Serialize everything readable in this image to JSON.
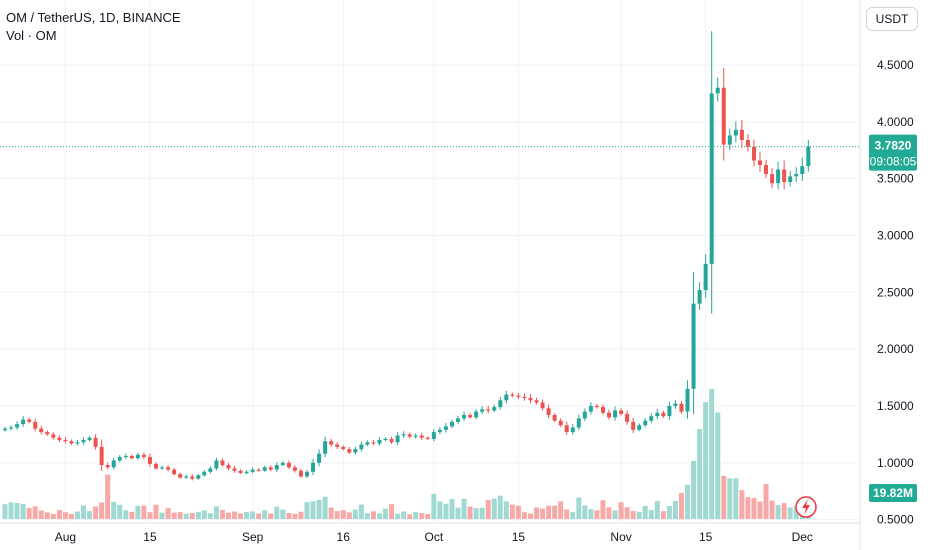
{
  "header": {
    "symbol_line": "OM / TetherUS, 1D, BINANCE",
    "volume_line": "Vol · OM",
    "currency_button": "USDT"
  },
  "price_badge": {
    "price": "3.7820",
    "countdown": "09:08:05"
  },
  "volume_badge": "19.82M",
  "colors": {
    "up": "#26a69a",
    "down": "#ef5350",
    "up_volume": "#9fd9d2",
    "down_volume": "#f7a9a7",
    "grid": "#f0f3fa",
    "text": "#131722",
    "badge": "#22ab94"
  },
  "chart_data": {
    "type": "candlestick",
    "title": "OM / TetherUS, 1D, BINANCE",
    "ylim": [
      0.47,
      4.72
    ],
    "y_ticks": [
      "0.5000",
      "1.0000",
      "1.5000",
      "2.0000",
      "2.5000",
      "3.0000",
      "3.5000",
      "4.0000",
      "4.5000"
    ],
    "x_tick_labels": [
      {
        "label": "Aug",
        "day": 10
      },
      {
        "label": "15",
        "day": 24
      },
      {
        "label": "Sep",
        "day": 41
      },
      {
        "label": "16",
        "day": 56
      },
      {
        "label": "Oct",
        "day": 71
      },
      {
        "label": "15",
        "day": 85
      },
      {
        "label": "Nov",
        "day": 102
      },
      {
        "label": "15",
        "day": 116
      },
      {
        "label": "Dec",
        "day": 132
      }
    ],
    "close": [
      1.3,
      1.31,
      1.34,
      1.38,
      1.36,
      1.3,
      1.27,
      1.25,
      1.22,
      1.2,
      1.19,
      1.17,
      1.18,
      1.2,
      1.22,
      1.14,
      0.98,
      0.96,
      1.02,
      1.05,
      1.06,
      1.04,
      1.07,
      1.05,
      0.99,
      0.95,
      0.96,
      0.94,
      0.9,
      0.87,
      0.88,
      0.86,
      0.89,
      0.92,
      0.95,
      1.02,
      0.98,
      0.95,
      0.93,
      0.91,
      0.92,
      0.94,
      0.93,
      0.96,
      0.94,
      0.98,
      1.0,
      0.96,
      0.93,
      0.88,
      0.92,
      1.0,
      1.08,
      1.19,
      1.16,
      1.14,
      1.12,
      1.09,
      1.12,
      1.16,
      1.18,
      1.17,
      1.2,
      1.21,
      1.18,
      1.24,
      1.25,
      1.23,
      1.24,
      1.22,
      1.21,
      1.27,
      1.29,
      1.32,
      1.36,
      1.39,
      1.42,
      1.4,
      1.45,
      1.47,
      1.46,
      1.49,
      1.55,
      1.6,
      1.59,
      1.58,
      1.57,
      1.55,
      1.53,
      1.48,
      1.42,
      1.37,
      1.33,
      1.27,
      1.31,
      1.39,
      1.45,
      1.5,
      1.49,
      1.44,
      1.4,
      1.46,
      1.43,
      1.36,
      1.29,
      1.33,
      1.37,
      1.41,
      1.44,
      1.41,
      1.5,
      1.52,
      1.45,
      1.65,
      2.4,
      2.52,
      2.75,
      4.25,
      4.3,
      3.8,
      3.88,
      3.93,
      3.84,
      3.78,
      3.66,
      3.62,
      3.54,
      3.46,
      3.58,
      3.47,
      3.52,
      3.54,
      3.61,
      3.782
    ],
    "volume_m": [
      12.8,
      14.5,
      13.9,
      13.0,
      9.6,
      11.1,
      7.4,
      5.8,
      4.4,
      8.0,
      5.9,
      4.4,
      6.5,
      11.7,
      6.8,
      11.0,
      14.3,
      38.5,
      14.9,
      12.4,
      7.6,
      6.2,
      11.4,
      11.7,
      6.0,
      12.4,
      5.5,
      9.4,
      5.6,
      6.0,
      4.6,
      5.2,
      6.0,
      7.5,
      5.0,
      11.0,
      7.9,
      5.5,
      6.5,
      4.9,
      6.2,
      6.5,
      4.8,
      7.6,
      4.8,
      10.7,
      8.2,
      5.3,
      4.6,
      6.3,
      14.7,
      15.4,
      16.6,
      19.4,
      10.0,
      6.9,
      7.7,
      5.7,
      8.2,
      12.6,
      5.0,
      6.7,
      4.9,
      9.0,
      12.9,
      4.6,
      6.5,
      4.0,
      6.0,
      5.2,
      4.3,
      21.9,
      15.4,
      13.2,
      17.3,
      9.9,
      17.6,
      10.8,
      9.3,
      9.8,
      16.5,
      17.7,
      20.3,
      15.2,
      12.5,
      11.6,
      5.9,
      4.8,
      10.0,
      9.0,
      11.5,
      11.6,
      15.4,
      8.3,
      6.0,
      18.7,
      11.8,
      8.5,
      7.5,
      16.2,
      10.2,
      7.5,
      14.6,
      10.2,
      7.0,
      6.3,
      11.4,
      7.7,
      15.6,
      6.8,
      11.2,
      15.7,
      22.7,
      29.8,
      50.5,
      78.2,
      101.6,
      113.0,
      92.6,
      37.4,
      35.4,
      35.4,
      25.1,
      19.0,
      18.3,
      15.2,
      30.3,
      16.1,
      12.1,
      13.8,
      10.1,
      11.4,
      14.5,
      19.8
    ]
  }
}
